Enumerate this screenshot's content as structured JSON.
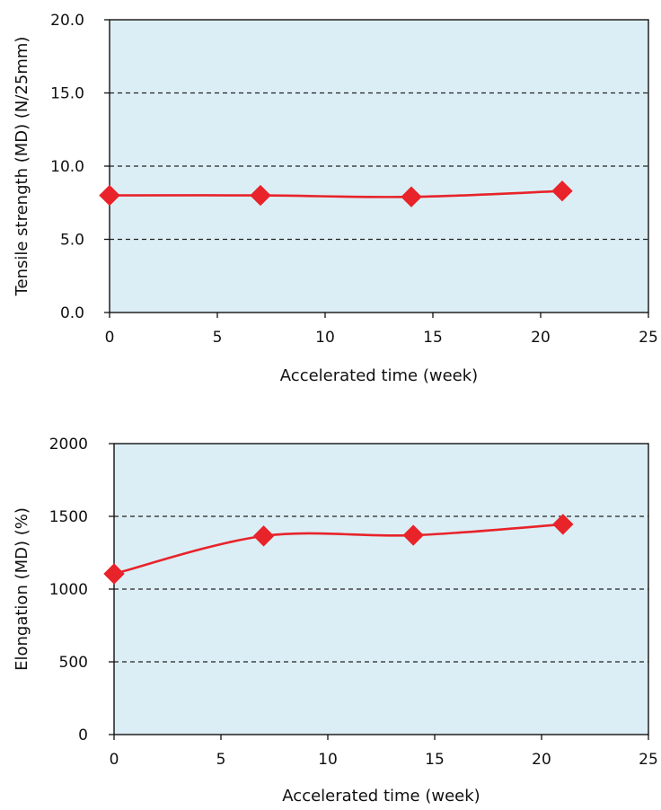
{
  "chart_data": [
    {
      "type": "line",
      "title": "",
      "xlabel": "Accelerated time (week)",
      "ylabel": "Tensile strength (MD) (N/25mm)",
      "xlim": [
        0,
        25
      ],
      "ylim": [
        0,
        20
      ],
      "x_ticks": [
        "0",
        "5",
        "10",
        "15",
        "20",
        "25"
      ],
      "y_ticks": [
        "0.0",
        "5.0",
        "10.0",
        "15.0",
        "20.0"
      ],
      "grid": "horizontal dashed",
      "legend": "none",
      "plot_background": "#dbeef5",
      "series": [
        {
          "x": [
            0,
            7,
            14,
            21
          ],
          "y": [
            8.0,
            8.0,
            7.9,
            8.3
          ],
          "color": "#e8232a",
          "marker": "diamond"
        }
      ]
    },
    {
      "type": "line",
      "title": "",
      "xlabel": "Accelerated time (week)",
      "ylabel": "Elongation (MD) (%)",
      "xlim": [
        0,
        25
      ],
      "ylim": [
        0,
        2000
      ],
      "x_ticks": [
        "0",
        "5",
        "10",
        "15",
        "20",
        "25"
      ],
      "y_ticks": [
        "0",
        "500",
        "1000",
        "1500",
        "2000"
      ],
      "grid": "horizontal dashed",
      "legend": "none",
      "plot_background": "#dbeef5",
      "series": [
        {
          "x": [
            0,
            7,
            14,
            21
          ],
          "y": [
            1105,
            1365,
            1370,
            1445
          ],
          "color": "#e8232a",
          "marker": "diamond"
        }
      ]
    }
  ]
}
